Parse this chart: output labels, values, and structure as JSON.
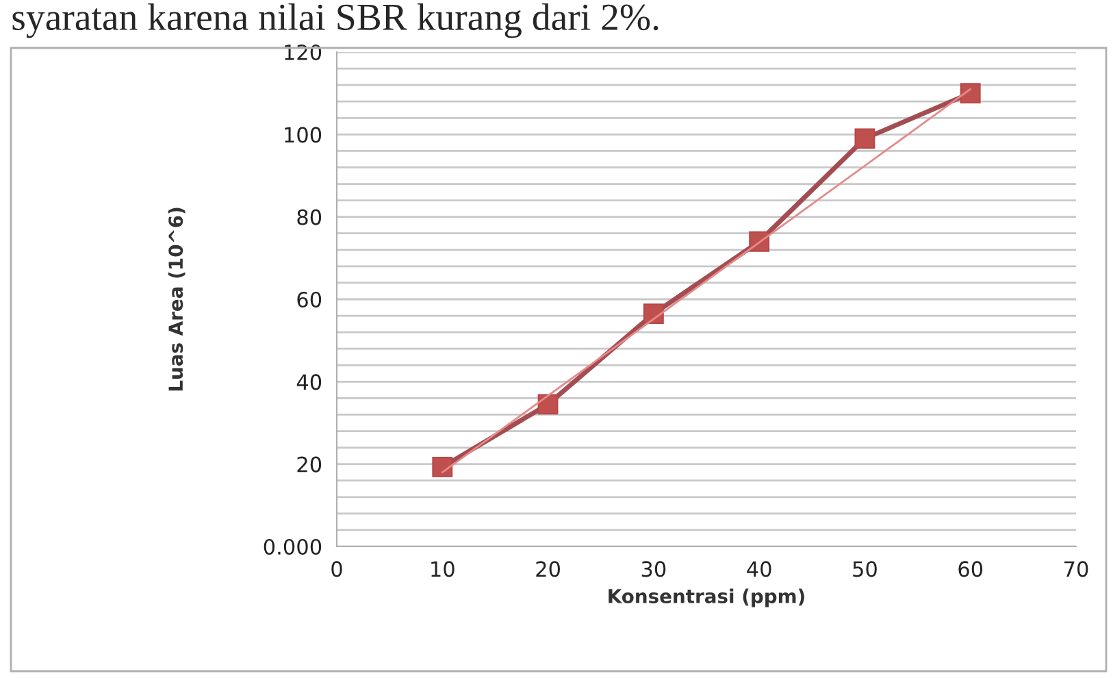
{
  "chart_data": {
    "type": "line",
    "xlabel": "Konsentrasi (ppm)",
    "ylabel": "Luas Area (10^6)",
    "annotations": [
      "syaratan karena nilai SBR kurang dari 2%."
    ],
    "x": [
      10,
      20,
      30,
      40,
      50,
      60
    ],
    "series": [
      {
        "color": "#a34d52",
        "values": [
          19.3,
          34.5,
          56.5,
          74,
          99,
          110
        ],
        "marker": "square",
        "line_style": "solid"
      },
      {
        "type": "line",
        "color": "#e58a8a",
        "x": [
          10,
          60
        ],
        "values": [
          18,
          111
        ],
        "marker": "none",
        "line_style": "solid"
      }
    ],
    "xlim": [
      0,
      70
    ],
    "xticks": [
      0,
      10,
      20,
      30,
      40,
      50,
      60,
      70
    ],
    "ylim": [
      0,
      120
    ],
    "yticks": [
      {
        "value": 0,
        "label": "0.000"
      },
      {
        "value": 4,
        "label": null
      },
      {
        "value": 8,
        "label": null
      },
      {
        "value": 12,
        "label": null
      },
      {
        "value": 16,
        "label": null
      },
      20,
      {
        "value": 24,
        "label": null
      },
      {
        "value": 28,
        "label": null
      },
      {
        "value": 32,
        "label": null
      },
      {
        "value": 36,
        "label": null
      },
      40,
      {
        "value": 44,
        "label": null
      },
      {
        "value": 48,
        "label": null
      },
      {
        "value": 52,
        "label": null
      },
      {
        "value": 56,
        "label": null
      },
      60,
      {
        "value": 64,
        "label": null
      },
      {
        "value": 68,
        "label": null
      },
      {
        "value": 72,
        "label": null
      },
      {
        "value": 76,
        "label": null
      },
      80,
      {
        "value": 84,
        "label": null
      },
      {
        "value": 88,
        "label": null
      },
      {
        "value": 92,
        "label": null
      },
      {
        "value": 96,
        "label": null
      },
      100,
      {
        "value": 104,
        "label": null
      },
      {
        "value": 108,
        "label": null
      },
      {
        "value": 112,
        "label": null
      },
      {
        "value": 116,
        "label": null
      },
      120
    ],
    "grid": "y",
    "legend": false
  }
}
